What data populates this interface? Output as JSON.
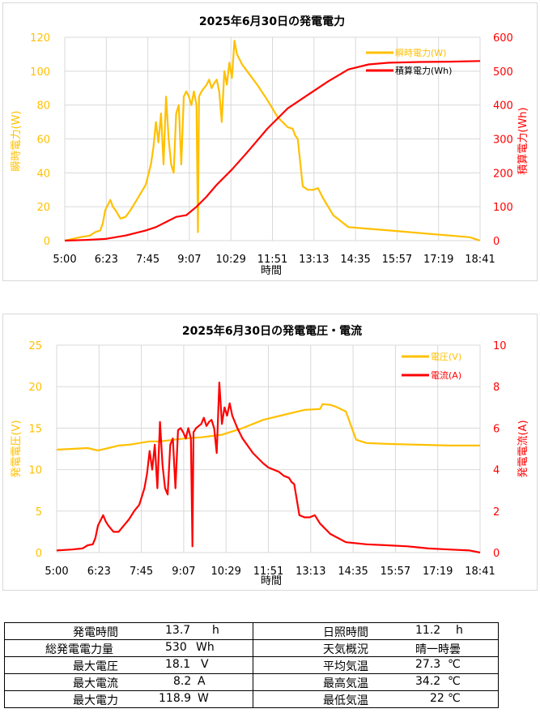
{
  "charts_meta": {
    "chart1": {
      "title": "2025年6月30日の発電電力",
      "xlabel": "時間",
      "ylabel_left": "瞬時電力(W)",
      "ylabel_right": "積算電力(Wh)",
      "yticks_left": [
        "0",
        "20",
        "40",
        "60",
        "80",
        "100",
        "120"
      ],
      "yticks_right": [
        "0",
        "100",
        "200",
        "300",
        "400",
        "500",
        "600"
      ],
      "xticks": [
        "5:00",
        "6:23",
        "7:45",
        "9:07",
        "10:29",
        "11:51",
        "13:13",
        "14:35",
        "15:57",
        "17:19",
        "18:41"
      ],
      "legend": [
        "瞬時電力(W)",
        "積算電力(Wh)"
      ]
    },
    "chart2": {
      "title": "2025年6月30日の発電電圧・電流",
      "xlabel": "時間",
      "ylabel_left": "発電電圧(V)",
      "ylabel_right": "発電電流(A)",
      "yticks_left": [
        "0",
        "5",
        "10",
        "15",
        "20",
        "25"
      ],
      "yticks_right": [
        "0",
        "2",
        "4",
        "6",
        "8",
        "10"
      ],
      "xticks": [
        "5:00",
        "6:23",
        "7:45",
        "9:07",
        "10:29",
        "11:51",
        "13:13",
        "14:35",
        "15:57",
        "17:19",
        "18:41"
      ],
      "legend": [
        "電圧(V)",
        "電流(A)"
      ]
    }
  },
  "colors": {
    "power": "#ffc000",
    "energy": "#ff0000",
    "voltage": "#ffc000",
    "current": "#ff0000",
    "grid": "#d9d9d9"
  },
  "chart_data": [
    {
      "type": "line",
      "title": "2025年6月30日の発電電力",
      "xlabel": "時間",
      "x_unit": "minutes after 5:00",
      "xlim": [
        0,
        820
      ],
      "ylim": [
        0,
        120
      ],
      "y2lim": [
        0,
        600
      ],
      "grid": true,
      "legend_position": "top-right",
      "series": [
        {
          "name": "瞬時電力(W)",
          "axis": "left",
          "x": [
            0,
            30,
            50,
            60,
            70,
            75,
            80,
            90,
            95,
            100,
            110,
            120,
            130,
            140,
            150,
            160,
            170,
            175,
            180,
            185,
            190,
            195,
            200,
            205,
            210,
            215,
            220,
            225,
            230,
            235,
            240,
            245,
            250,
            255,
            260,
            263,
            265,
            270,
            275,
            280,
            285,
            290,
            295,
            300,
            305,
            310,
            315,
            320,
            325,
            330,
            335,
            340,
            350,
            360,
            380,
            400,
            410,
            420,
            430,
            440,
            450,
            455,
            460,
            470,
            480,
            490,
            500,
            510,
            530,
            560,
            600,
            640,
            680,
            720,
            760,
            800,
            810,
            820
          ],
          "values": [
            0,
            2,
            3,
            5,
            6,
            10,
            18,
            24,
            20,
            18,
            13,
            14,
            18,
            23,
            28,
            33,
            45,
            55,
            70,
            58,
            75,
            45,
            85,
            60,
            45,
            40,
            75,
            80,
            45,
            85,
            88,
            85,
            80,
            88,
            80,
            5,
            85,
            88,
            90,
            92,
            95,
            90,
            93,
            95,
            88,
            70,
            100,
            92,
            105,
            96,
            118,
            110,
            104,
            100,
            92,
            83,
            78,
            73,
            70,
            67,
            66,
            62,
            60,
            32,
            30,
            30,
            31,
            25,
            15,
            8,
            7,
            6,
            5,
            4,
            3,
            2,
            1,
            0
          ]
        },
        {
          "name": "積算電力(Wh)",
          "axis": "right",
          "x": [
            0,
            40,
            80,
            120,
            160,
            180,
            200,
            220,
            240,
            260,
            280,
            300,
            330,
            360,
            400,
            440,
            480,
            520,
            560,
            600,
            640,
            700,
            760,
            820
          ],
          "values": [
            0,
            2,
            5,
            15,
            30,
            40,
            55,
            70,
            75,
            100,
            130,
            165,
            210,
            260,
            330,
            390,
            430,
            470,
            505,
            520,
            525,
            527,
            528,
            530
          ]
        }
      ]
    },
    {
      "type": "line",
      "title": "2025年6月30日の発電電圧・電流",
      "xlabel": "時間",
      "x_unit": "minutes after 5:00",
      "xlim": [
        0,
        820
      ],
      "ylim": [
        0,
        25
      ],
      "y2lim": [
        0,
        10
      ],
      "grid": true,
      "legend_position": "top-right",
      "series": [
        {
          "name": "電圧(V)",
          "axis": "left",
          "x": [
            0,
            30,
            60,
            80,
            100,
            120,
            140,
            160,
            180,
            200,
            240,
            280,
            320,
            360,
            400,
            440,
            480,
            510,
            515,
            530,
            540,
            560,
            580,
            600,
            640,
            700,
            760,
            820
          ],
          "values": [
            12.4,
            12.5,
            12.6,
            12.3,
            12.6,
            12.9,
            13.0,
            13.2,
            13.4,
            13.4,
            13.7,
            13.9,
            14.2,
            15.0,
            16.0,
            16.6,
            17.2,
            17.3,
            17.9,
            17.8,
            17.6,
            17.0,
            13.6,
            13.2,
            13.1,
            13.0,
            12.9,
            12.9
          ]
        },
        {
          "name": "電流(A)",
          "axis": "right",
          "x": [
            0,
            30,
            50,
            60,
            70,
            75,
            80,
            90,
            95,
            100,
            110,
            120,
            130,
            140,
            150,
            160,
            170,
            175,
            180,
            185,
            190,
            195,
            200,
            205,
            210,
            215,
            220,
            225,
            230,
            235,
            240,
            245,
            250,
            255,
            260,
            263,
            265,
            270,
            275,
            280,
            285,
            290,
            295,
            300,
            305,
            310,
            315,
            320,
            325,
            330,
            335,
            340,
            350,
            360,
            380,
            400,
            410,
            420,
            430,
            440,
            450,
            455,
            460,
            470,
            480,
            490,
            500,
            510,
            530,
            560,
            600,
            640,
            680,
            720,
            760,
            800,
            810,
            820
          ],
          "values": [
            0.1,
            0.15,
            0.2,
            0.35,
            0.4,
            0.7,
            1.3,
            1.8,
            1.5,
            1.3,
            1.0,
            1.0,
            1.3,
            1.6,
            2.0,
            2.3,
            3.1,
            3.8,
            4.9,
            4.0,
            5.2,
            3.1,
            6.3,
            4.2,
            3.1,
            2.8,
            5.2,
            5.5,
            3.1,
            5.9,
            6.0,
            5.8,
            5.5,
            6.0,
            5.5,
            0.3,
            5.8,
            6.0,
            6.1,
            6.2,
            6.5,
            6.1,
            6.3,
            6.4,
            6.0,
            4.8,
            8.2,
            6.2,
            7.0,
            6.6,
            7.2,
            6.6,
            6.0,
            5.5,
            4.8,
            4.3,
            4.1,
            4.0,
            3.9,
            3.7,
            3.6,
            3.4,
            3.3,
            1.8,
            1.7,
            1.7,
            1.8,
            1.4,
            0.9,
            0.5,
            0.4,
            0.35,
            0.3,
            0.2,
            0.15,
            0.1,
            0.05,
            0.0
          ]
        }
      ]
    }
  ],
  "stats": {
    "left": [
      {
        "label": "発電時間",
        "value": "13.7",
        "unit": "h"
      },
      {
        "label": "総発電電力量",
        "value": "530",
        "unit": "Wh"
      },
      {
        "label": "最大電圧",
        "value": "18.1",
        "unit": "V"
      },
      {
        "label": "最大電流",
        "value": "8.2",
        "unit": "A"
      },
      {
        "label": "最大電力",
        "value": "118.9",
        "unit": "W"
      }
    ],
    "right": [
      {
        "label": "日照時間",
        "value": "11.2",
        "unit": "h"
      },
      {
        "label": "天気概況",
        "value": "晴一時曇",
        "unit": ""
      },
      {
        "label": "平均気温",
        "value": "27.3",
        "unit": "℃"
      },
      {
        "label": "最高気温",
        "value": "34.2",
        "unit": "℃"
      },
      {
        "label": "最低気温",
        "value": "22",
        "unit": "℃"
      }
    ]
  }
}
